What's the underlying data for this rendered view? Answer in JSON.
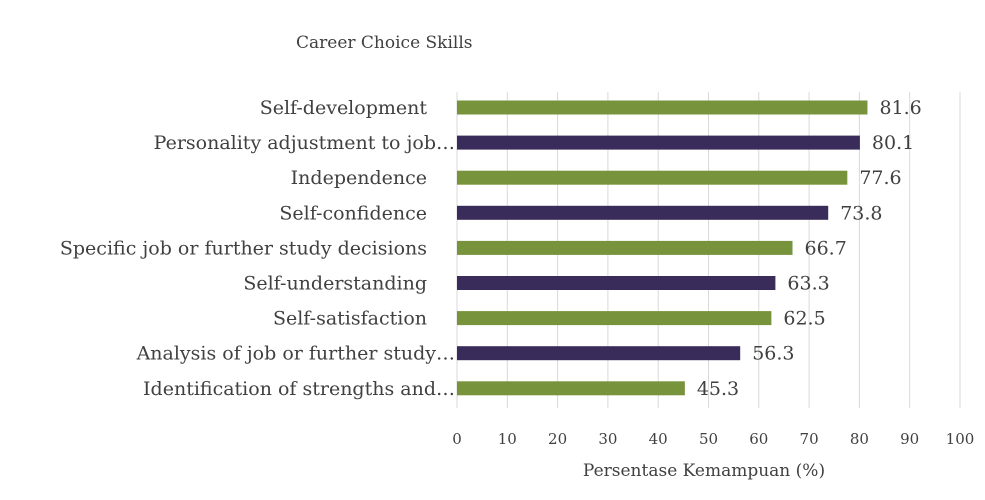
{
  "chart_data": {
    "type": "bar",
    "orientation": "horizontal",
    "title": "Career Choice Skills",
    "xlabel": "Persentase Kemampuan (%)",
    "ylabel": "",
    "xlim": [
      0,
      100
    ],
    "x_ticks": [
      "0",
      "10",
      "20",
      "30",
      "40",
      "50",
      "60",
      "70",
      "80",
      "90",
      "100"
    ],
    "grid": true,
    "legend": "none",
    "colors": {
      "green": "#77933c",
      "purple": "#3a2c5a"
    },
    "categories": [
      "Self-development",
      "Personality adjustment to job…",
      "Independence",
      "Self-confidence",
      "Specific job or further study decisions",
      "Self-understanding",
      "Self-satisfaction",
      "Analysis of job or further study…",
      "Identification of strengths and…"
    ],
    "values": [
      81.6,
      80.1,
      77.6,
      73.8,
      66.7,
      63.3,
      62.5,
      56.3,
      45.3
    ],
    "value_labels": [
      "81.6",
      "80.1",
      "77.6",
      "73.8",
      "66.7",
      "63.3",
      "62.5",
      "56.3",
      "45.3"
    ],
    "bar_colors": [
      "green",
      "purple",
      "green",
      "purple",
      "green",
      "purple",
      "green",
      "purple",
      "green"
    ]
  }
}
